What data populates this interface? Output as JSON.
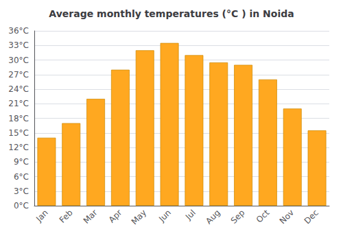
{
  "chart_data": {
    "type": "bar",
    "title": "Average monthly temperatures (°C ) in Noida",
    "categories": [
      "Jan",
      "Feb",
      "Mar",
      "Apr",
      "May",
      "Jun",
      "Jul",
      "Aug",
      "Sep",
      "Oct",
      "Nov",
      "Dec"
    ],
    "values": [
      14,
      17,
      22,
      28,
      32,
      33.5,
      31,
      29.5,
      29,
      26,
      20,
      15.5
    ],
    "color": "#FFA820",
    "ylim": [
      0,
      36
    ],
    "yticks": [
      {
        "value": 0,
        "label": "0°C"
      },
      {
        "value": 3,
        "label": "3°C"
      },
      {
        "value": 6,
        "label": "6°C"
      },
      {
        "value": 9,
        "label": "9°C"
      },
      {
        "value": 12,
        "label": "12°C"
      },
      {
        "value": 15,
        "label": "15°C"
      },
      {
        "value": 18,
        "label": "18°C"
      },
      {
        "value": 21,
        "label": "21°C"
      },
      {
        "value": 24,
        "label": "24°C"
      },
      {
        "value": 27,
        "label": "27°C"
      },
      {
        "value": 30,
        "label": "30°C"
      },
      {
        "value": 33,
        "label": "33°C"
      },
      {
        "value": 36,
        "label": "36°C"
      }
    ],
    "grid": true
  }
}
